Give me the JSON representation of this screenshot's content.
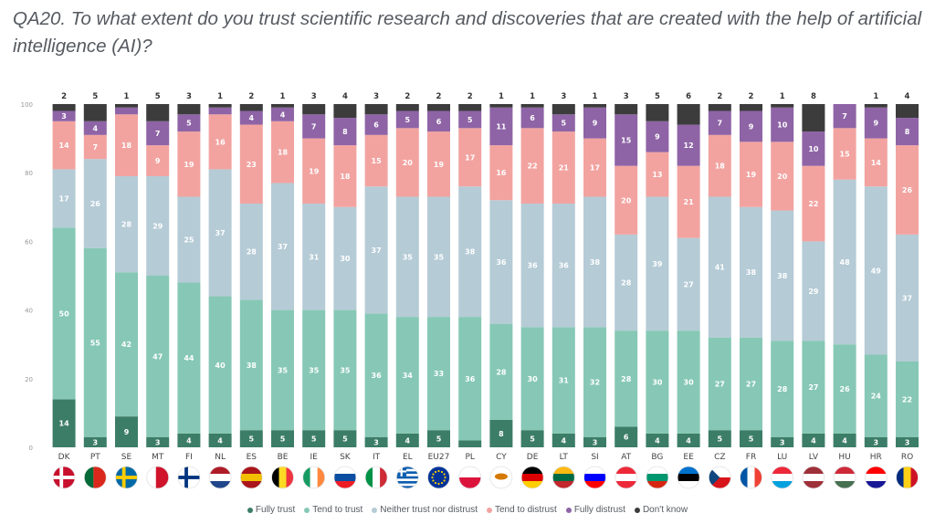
{
  "title": "QA20. To what extent do you trust scientific research and discoveries that are created with the help of artificial intelligence (AI)?",
  "chart_data": {
    "type": "bar",
    "stacked": true,
    "categories": [
      "DK",
      "PT",
      "SE",
      "MT",
      "FI",
      "NL",
      "ES",
      "BE",
      "IE",
      "SK",
      "IT",
      "EL",
      "EU27",
      "PL",
      "CY",
      "DE",
      "LT",
      "SI",
      "AT",
      "BG",
      "EE",
      "CZ",
      "FR",
      "LU",
      "LV",
      "HU",
      "HR",
      "RO"
    ],
    "y_ticks": [
      "0",
      "20",
      "40",
      "60",
      "80",
      "100"
    ],
    "ylim": [
      0,
      100
    ],
    "series": [
      {
        "name": "Fully trust",
        "color": "#3c7d68",
        "label_color": "#ffffff",
        "values": [
          14,
          3,
          9,
          3,
          4,
          4,
          5,
          5,
          5,
          5,
          3,
          4,
          5,
          2,
          8,
          5,
          4,
          3,
          6,
          4,
          4,
          5,
          5,
          3,
          4,
          4,
          3,
          3
        ]
      },
      {
        "name": "Tend to trust",
        "color": "#86c8b5",
        "label_color": "#ffffff",
        "values": [
          50,
          55,
          42,
          47,
          44,
          40,
          38,
          35,
          35,
          35,
          36,
          34,
          33,
          36,
          28,
          30,
          31,
          32,
          28,
          30,
          30,
          27,
          27,
          28,
          27,
          26,
          24,
          22
        ]
      },
      {
        "name": "Neither trust nor distrust",
        "color": "#b5cbd6",
        "label_color": "#ffffff",
        "values": [
          17,
          26,
          28,
          29,
          25,
          37,
          28,
          37,
          31,
          30,
          37,
          35,
          35,
          38,
          36,
          36,
          36,
          38,
          28,
          39,
          27,
          41,
          38,
          38,
          29,
          48,
          49,
          37
        ]
      },
      {
        "name": "Tend to distrust",
        "color": "#f2a3a0",
        "label_color": "#ffffff",
        "values": [
          14,
          7,
          18,
          9,
          19,
          16,
          23,
          18,
          19,
          18,
          15,
          20,
          19,
          17,
          16,
          22,
          21,
          17,
          20,
          13,
          21,
          18,
          19,
          20,
          22,
          15,
          14,
          26
        ]
      },
      {
        "name": "Fully distrust",
        "color": "#8e64a6",
        "label_color": "#ffffff",
        "values": [
          3,
          4,
          2,
          7,
          5,
          2,
          4,
          4,
          7,
          8,
          6,
          5,
          6,
          5,
          11,
          6,
          5,
          9,
          15,
          9,
          12,
          7,
          9,
          10,
          10,
          7,
          9,
          8
        ]
      },
      {
        "name": "Don't know",
        "color": "#3c3c3c",
        "label_color": "#ffffff",
        "values": [
          2,
          5,
          1,
          5,
          3,
          1,
          2,
          1,
          3,
          4,
          3,
          2,
          2,
          2,
          1,
          1,
          3,
          1,
          3,
          5,
          6,
          2,
          2,
          1,
          8,
          0,
          1,
          4
        ]
      }
    ],
    "top_labels": [
      "2",
      "5",
      "1",
      "5",
      "3",
      "1",
      "2",
      "1",
      "3",
      "4",
      "3",
      "2",
      "2",
      "2",
      "1",
      "1",
      "3",
      "1",
      "3",
      "5",
      "6",
      "2",
      "2",
      "1",
      "8",
      "",
      "1",
      "4"
    ],
    "hidden_segment_labels": {
      "0": [],
      "1": [],
      "2": [],
      "3": [],
      "4": [
        "SE",
        "NL"
      ],
      "5": []
    },
    "flags": [
      {
        "code": "DK",
        "stripes": "cross",
        "c": [
          "#c8102e",
          "#ffffff"
        ]
      },
      {
        "code": "PT",
        "stripes": "v2",
        "c": [
          "#046a38",
          "#da291c"
        ]
      },
      {
        "code": "SE",
        "stripes": "cross",
        "c": [
          "#006aa7",
          "#fecc00"
        ]
      },
      {
        "code": "MT",
        "stripes": "v2",
        "c": [
          "#ffffff",
          "#cf142b"
        ]
      },
      {
        "code": "FI",
        "stripes": "cross",
        "c": [
          "#ffffff",
          "#003580"
        ]
      },
      {
        "code": "NL",
        "stripes": "h3",
        "c": [
          "#ae1c28",
          "#ffffff",
          "#21468b"
        ]
      },
      {
        "code": "ES",
        "stripes": "h3",
        "c": [
          "#aa151b",
          "#f1bf00",
          "#aa151b"
        ]
      },
      {
        "code": "BE",
        "stripes": "v3",
        "c": [
          "#000000",
          "#fdda24",
          "#ef3340"
        ]
      },
      {
        "code": "IE",
        "stripes": "v3",
        "c": [
          "#169b62",
          "#ffffff",
          "#ff883e"
        ]
      },
      {
        "code": "SK",
        "stripes": "h3",
        "c": [
          "#ffffff",
          "#0b4ea2",
          "#ee1c25"
        ]
      },
      {
        "code": "IT",
        "stripes": "v3",
        "c": [
          "#009246",
          "#ffffff",
          "#ce2b37"
        ]
      },
      {
        "code": "EL",
        "stripes": "greek",
        "c": [
          "#0d5eaf",
          "#ffffff"
        ]
      },
      {
        "code": "EU27",
        "stripes": "eu",
        "c": [
          "#003399",
          "#ffcc00"
        ]
      },
      {
        "code": "PL",
        "stripes": "h2",
        "c": [
          "#ffffff",
          "#dc143c"
        ]
      },
      {
        "code": "CY",
        "stripes": "cy",
        "c": [
          "#ffffff",
          "#d57800"
        ]
      },
      {
        "code": "DE",
        "stripes": "h3",
        "c": [
          "#000000",
          "#dd0000",
          "#ffce00"
        ]
      },
      {
        "code": "LT",
        "stripes": "h3",
        "c": [
          "#fdb913",
          "#006a44",
          "#c1272d"
        ]
      },
      {
        "code": "SI",
        "stripes": "h3",
        "c": [
          "#ffffff",
          "#0000ff",
          "#ff0000"
        ]
      },
      {
        "code": "AT",
        "stripes": "h3",
        "c": [
          "#ed2939",
          "#ffffff",
          "#ed2939"
        ]
      },
      {
        "code": "BG",
        "stripes": "h3",
        "c": [
          "#ffffff",
          "#00966e",
          "#d62612"
        ]
      },
      {
        "code": "EE",
        "stripes": "h3",
        "c": [
          "#0072ce",
          "#000000",
          "#ffffff"
        ]
      },
      {
        "code": "CZ",
        "stripes": "cz",
        "c": [
          "#ffffff",
          "#d7141a",
          "#11457e"
        ]
      },
      {
        "code": "FR",
        "stripes": "v3",
        "c": [
          "#0055a4",
          "#ffffff",
          "#ef4135"
        ]
      },
      {
        "code": "LU",
        "stripes": "h3",
        "c": [
          "#ed2939",
          "#ffffff",
          "#00a1de"
        ]
      },
      {
        "code": "LV",
        "stripes": "h3",
        "c": [
          "#9e3039",
          "#ffffff",
          "#9e3039"
        ]
      },
      {
        "code": "HU",
        "stripes": "h3",
        "c": [
          "#ce2939",
          "#ffffff",
          "#477050"
        ]
      },
      {
        "code": "HR",
        "stripes": "h3",
        "c": [
          "#ff0000",
          "#ffffff",
          "#171796"
        ]
      },
      {
        "code": "RO",
        "stripes": "v3",
        "c": [
          "#002b7f",
          "#fcd116",
          "#ce1126"
        ]
      }
    ]
  }
}
